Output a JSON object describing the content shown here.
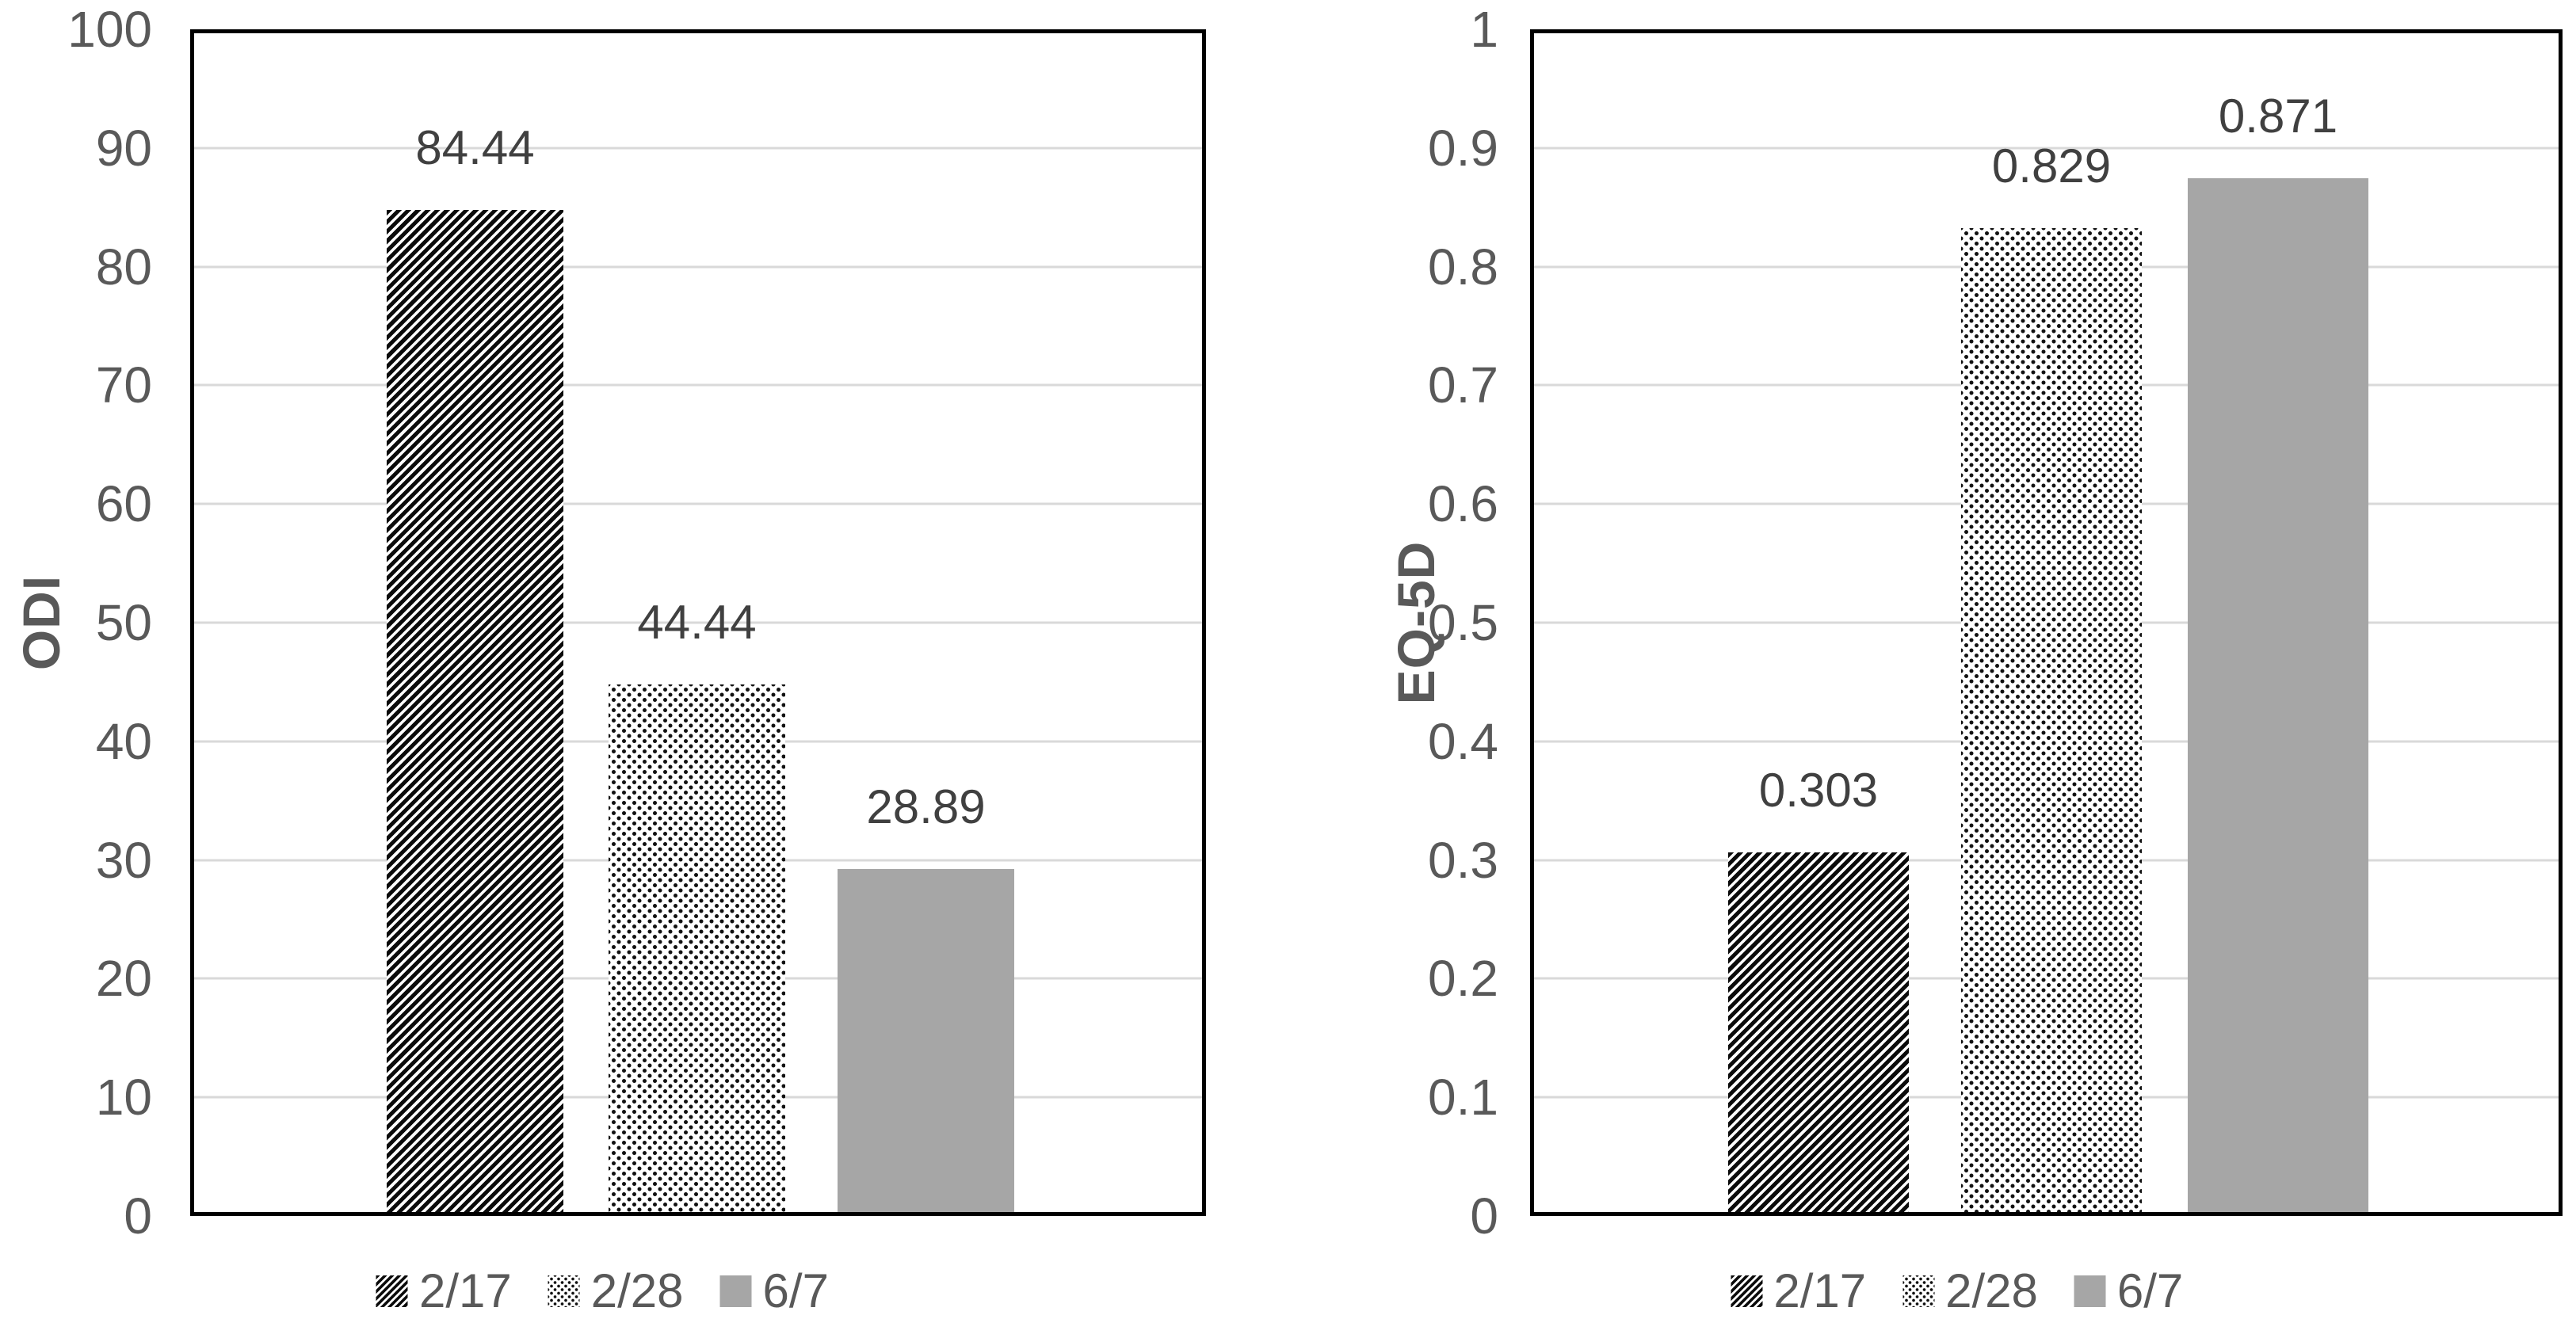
{
  "colors": {
    "background": "#ffffff",
    "plot_border": "#000000",
    "gridline": "#d9d9d9",
    "tick_text": "#595959",
    "axis_title_text": "#595959",
    "data_label_text": "#404040",
    "legend_text": "#595959",
    "solid_bar_gray": "#a6a6a6",
    "pattern_ink": "#0b0b0b"
  },
  "chart_data": [
    {
      "type": "bar",
      "title": "",
      "xlabel": "",
      "ylabel": "ODI",
      "ylim": [
        0,
        100
      ],
      "grid": true,
      "legend_position": "bottom",
      "y_ticks": [
        "0",
        "10",
        "20",
        "30",
        "40",
        "50",
        "60",
        "70",
        "80",
        "90",
        "100"
      ],
      "categories": [
        "2/17",
        "2/28",
        "6/7"
      ],
      "values": [
        84.44,
        44.44,
        28.89
      ],
      "data_labels": [
        "84.44",
        "44.44",
        "28.89"
      ],
      "patterns": [
        "diagonal-stripes",
        "dots",
        "solid-gray"
      ]
    },
    {
      "type": "bar",
      "title": "",
      "xlabel": "",
      "ylabel": "EQ-5D",
      "ylim": [
        0,
        1
      ],
      "grid": true,
      "legend_position": "bottom",
      "y_ticks": [
        "0",
        "0.1",
        "0.2",
        "0.3",
        "0.4",
        "0.5",
        "0.6",
        "0.7",
        "0.8",
        "0.9",
        "1"
      ],
      "categories": [
        "2/17",
        "2/28",
        "6/7"
      ],
      "values": [
        0.303,
        0.829,
        0.871
      ],
      "data_labels": [
        "0.303",
        "0.829",
        "0.871"
      ],
      "patterns": [
        "diagonal-stripes",
        "dots",
        "solid-gray"
      ]
    }
  ]
}
